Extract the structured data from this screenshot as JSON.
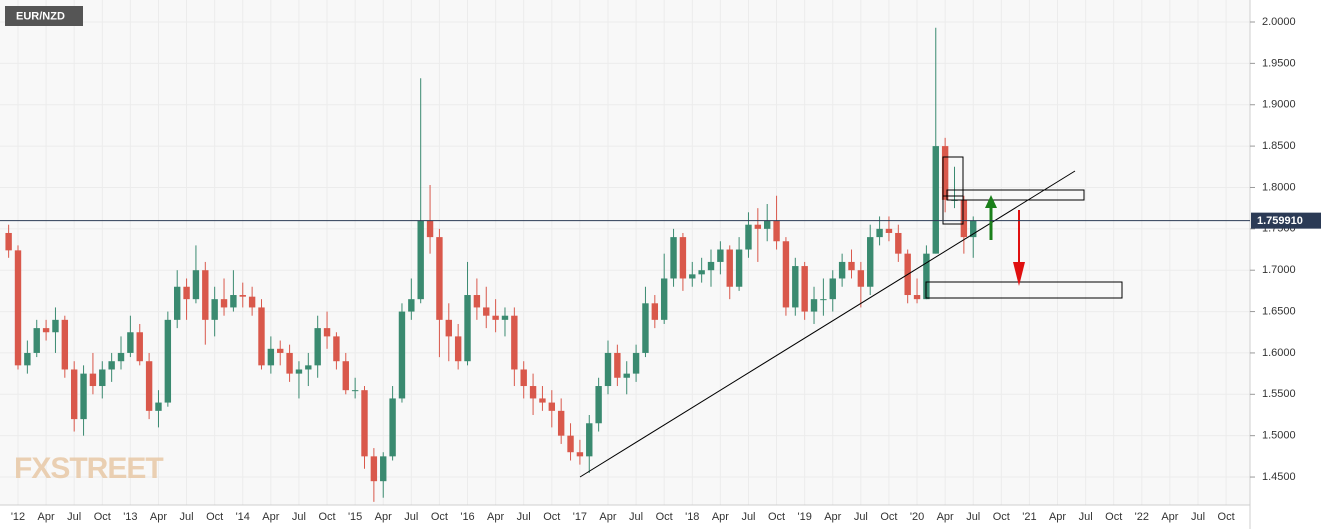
{
  "chart_data": {
    "type": "candlestick",
    "title": "EUR/NZD",
    "watermark": "FXSTREET",
    "up_color": "#3a8a70",
    "down_color": "#d9584b",
    "grid": true,
    "ylim": [
      1.4162,
      2.0266
    ],
    "yticks": [
      {
        "value": 1.45,
        "label": "1.4500"
      },
      {
        "value": 1.5,
        "label": "1.5000"
      },
      {
        "value": 1.55,
        "label": "1.5500"
      },
      {
        "value": 1.6,
        "label": "1.6000"
      },
      {
        "value": 1.65,
        "label": "1.6500"
      },
      {
        "value": 1.7,
        "label": "1.7000"
      },
      {
        "value": 1.75,
        "label": "1.7500"
      },
      {
        "value": 1.8,
        "label": "1.8000"
      },
      {
        "value": 1.85,
        "label": "1.8500"
      },
      {
        "value": 1.9,
        "label": "1.9000"
      },
      {
        "value": 1.95,
        "label": "1.9500"
      },
      {
        "value": 2.0,
        "label": "2.0000"
      }
    ],
    "last_price": {
      "value": 1.75991,
      "label": "1.759910"
    },
    "categories": [
      null,
      null,
      "'12",
      null,
      null,
      "Apr",
      null,
      null,
      "Jul",
      null,
      null,
      "Oct",
      null,
      null,
      "'13",
      null,
      null,
      "Apr",
      null,
      null,
      "Jul",
      null,
      null,
      "Oct",
      null,
      null,
      "'14",
      null,
      null,
      "Apr",
      null,
      null,
      "Jul",
      null,
      null,
      "Oct",
      null,
      null,
      "'15",
      null,
      null,
      "Apr",
      null,
      null,
      "Jul",
      null,
      null,
      "Oct",
      null,
      null,
      "'16",
      null,
      null,
      "Apr",
      null,
      null,
      "Jul",
      null,
      null,
      "Oct",
      null,
      null,
      "'17",
      null,
      null,
      "Apr",
      null,
      null,
      "Jul",
      null,
      null,
      "Oct",
      null,
      null,
      "'18",
      null,
      null,
      "Apr",
      null,
      null,
      "Jul",
      null,
      null,
      "Oct",
      null,
      null,
      "'19",
      null,
      null,
      "Apr",
      null,
      null,
      "Jul",
      null,
      null,
      "Oct",
      null,
      null,
      "'20",
      null,
      null,
      "Apr",
      null,
      null,
      "Jul",
      null,
      null,
      "Oct",
      null,
      null,
      "'21",
      null,
      null,
      "Apr",
      null,
      null,
      "Jul",
      null,
      null,
      "Oct",
      null,
      null,
      "'22",
      null,
      null,
      "Apr",
      null,
      null,
      "Jul",
      null,
      null,
      "Oct"
    ],
    "open": [
      null,
      1.745,
      1.724,
      1.585,
      1.6,
      1.63,
      1.625,
      1.64,
      1.58,
      1.52,
      1.575,
      1.56,
      1.58,
      1.59,
      1.6,
      1.625,
      1.59,
      1.53,
      1.54,
      1.64,
      1.68,
      1.665,
      1.7,
      1.64,
      1.665,
      1.655,
      1.67,
      1.668,
      1.655,
      1.585,
      1.605,
      1.6,
      1.575,
      1.58,
      1.585,
      1.63,
      1.62,
      1.59,
      1.555,
      1.555,
      1.475,
      1.445,
      1.475,
      1.545,
      1.65,
      1.665,
      1.76,
      1.74,
      1.64,
      1.62,
      1.59,
      1.67,
      1.655,
      1.645,
      1.64,
      1.645,
      1.58,
      1.56,
      1.545,
      1.54,
      1.53,
      1.5,
      1.48,
      1.475,
      1.515,
      1.56,
      1.6,
      1.57,
      1.575,
      1.6,
      1.66,
      1.64,
      1.69,
      1.74,
      1.69,
      1.695,
      1.7,
      1.71,
      1.725,
      1.68,
      1.725,
      1.755,
      1.75,
      1.76,
      1.735,
      1.655,
      1.705,
      1.65,
      1.665,
      1.665,
      1.69,
      1.71,
      1.7,
      1.68,
      1.74,
      1.75,
      1.745,
      1.72,
      1.67,
      1.665,
      1.72,
      1.85,
      1.785,
      1.785,
      1.74,
      null,
      null,
      null,
      null,
      null,
      null,
      null,
      null,
      null,
      null,
      null,
      null,
      null,
      null,
      null,
      null,
      null,
      null,
      null,
      null,
      null,
      null,
      null,
      null,
      null,
      null,
      null
    ],
    "high": [
      null,
      1.755,
      1.73,
      1.615,
      1.64,
      1.64,
      1.655,
      1.645,
      1.59,
      1.585,
      1.6,
      1.59,
      1.6,
      1.62,
      1.645,
      1.635,
      1.6,
      1.555,
      1.65,
      1.7,
      1.69,
      1.73,
      1.71,
      1.68,
      1.69,
      1.7,
      1.685,
      1.68,
      1.665,
      1.62,
      1.615,
      1.61,
      1.59,
      1.6,
      1.645,
      1.65,
      1.625,
      1.6,
      1.57,
      1.56,
      1.485,
      1.48,
      1.56,
      1.66,
      1.69,
      1.932,
      1.803,
      1.75,
      1.66,
      1.635,
      1.71,
      1.69,
      1.68,
      1.665,
      1.655,
      1.655,
      1.59,
      1.575,
      1.56,
      1.555,
      1.545,
      1.515,
      1.495,
      1.525,
      1.57,
      1.615,
      1.61,
      1.59,
      1.61,
      1.68,
      1.67,
      1.72,
      1.75,
      1.745,
      1.71,
      1.715,
      1.725,
      1.735,
      1.73,
      1.74,
      1.77,
      1.775,
      1.78,
      1.79,
      1.74,
      1.715,
      1.71,
      1.68,
      1.69,
      1.7,
      1.72,
      1.725,
      1.71,
      1.755,
      1.765,
      1.765,
      1.755,
      1.725,
      1.69,
      1.73,
      1.993,
      1.86,
      1.825,
      1.79,
      1.765,
      null,
      null,
      null,
      null,
      null,
      null,
      null,
      null,
      null,
      null,
      null,
      null,
      null,
      null,
      null,
      null,
      null,
      null,
      null,
      null,
      null,
      null,
      null,
      null,
      null,
      null,
      null
    ],
    "low": [
      null,
      1.715,
      1.58,
      1.575,
      1.595,
      1.615,
      1.6,
      1.57,
      1.505,
      1.5,
      1.55,
      1.545,
      1.565,
      1.58,
      1.595,
      1.585,
      1.52,
      1.51,
      1.535,
      1.63,
      1.64,
      1.66,
      1.61,
      1.62,
      1.645,
      1.65,
      1.655,
      1.645,
      1.58,
      1.575,
      1.585,
      1.565,
      1.545,
      1.56,
      1.57,
      1.605,
      1.58,
      1.55,
      1.545,
      1.46,
      1.42,
      1.425,
      1.47,
      1.54,
      1.64,
      1.66,
      1.72,
      1.595,
      1.59,
      1.58,
      1.585,
      1.64,
      1.63,
      1.625,
      1.62,
      1.56,
      1.545,
      1.525,
      1.53,
      1.51,
      1.49,
      1.47,
      1.465,
      1.455,
      1.505,
      1.55,
      1.56,
      1.55,
      1.565,
      1.595,
      1.63,
      1.635,
      1.68,
      1.675,
      1.68,
      1.685,
      1.68,
      1.695,
      1.665,
      1.675,
      1.715,
      1.71,
      1.735,
      1.725,
      1.645,
      1.645,
      1.64,
      1.635,
      1.645,
      1.65,
      1.68,
      1.69,
      1.655,
      1.67,
      1.73,
      1.735,
      1.71,
      1.66,
      1.66,
      1.665,
      1.72,
      1.77,
      1.775,
      1.72,
      1.715,
      null,
      null,
      null,
      null,
      null,
      null,
      null,
      null,
      null,
      null,
      null,
      null,
      null,
      null,
      null,
      null,
      null,
      null,
      null,
      null,
      null,
      null,
      null,
      null,
      null,
      null,
      null
    ],
    "close": [
      null,
      1.724,
      1.585,
      1.6,
      1.63,
      1.625,
      1.64,
      1.58,
      1.52,
      1.575,
      1.56,
      1.58,
      1.59,
      1.6,
      1.625,
      1.59,
      1.53,
      1.54,
      1.64,
      1.68,
      1.665,
      1.7,
      1.64,
      1.665,
      1.655,
      1.67,
      1.668,
      1.655,
      1.585,
      1.605,
      1.6,
      1.575,
      1.58,
      1.585,
      1.63,
      1.62,
      1.59,
      1.555,
      1.555,
      1.475,
      1.445,
      1.475,
      1.545,
      1.65,
      1.665,
      1.76,
      1.74,
      1.64,
      1.62,
      1.59,
      1.67,
      1.655,
      1.645,
      1.64,
      1.645,
      1.58,
      1.56,
      1.545,
      1.54,
      1.53,
      1.5,
      1.48,
      1.475,
      1.515,
      1.56,
      1.6,
      1.57,
      1.575,
      1.6,
      1.66,
      1.64,
      1.69,
      1.74,
      1.69,
      1.695,
      1.7,
      1.71,
      1.725,
      1.68,
      1.725,
      1.755,
      1.75,
      1.76,
      1.735,
      1.655,
      1.705,
      1.65,
      1.665,
      1.665,
      1.69,
      1.71,
      1.7,
      1.68,
      1.74,
      1.75,
      1.745,
      1.72,
      1.67,
      1.665,
      1.72,
      1.85,
      1.785,
      1.785,
      1.74,
      1.76,
      null,
      null,
      null,
      null,
      null,
      null,
      null,
      null,
      null,
      null,
      null,
      null,
      null,
      null,
      null,
      null,
      null,
      null,
      null,
      null,
      null,
      null,
      null,
      null,
      null,
      null,
      null
    ]
  }
}
